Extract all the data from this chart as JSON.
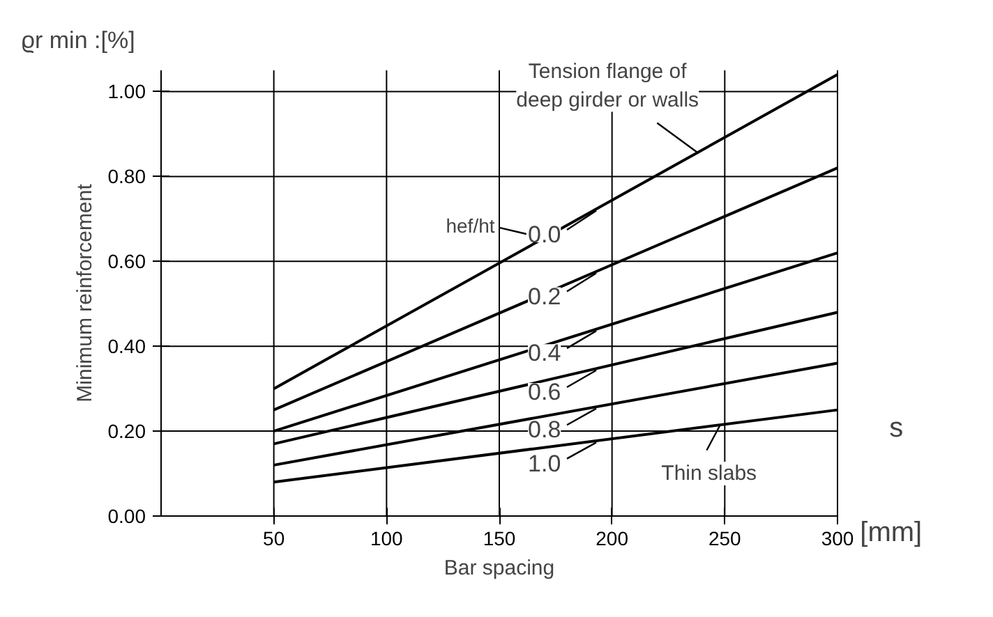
{
  "chart_data": {
    "type": "line",
    "xlabel": "Bar spacing",
    "ylabel": "Minimum reinforcement",
    "legend_title": "hef/ht",
    "x": [
      50,
      300
    ],
    "series": [
      {
        "name": "0.0",
        "color": "#000000",
        "values": [
          0.3,
          1.04
        ]
      },
      {
        "name": "0.2",
        "color": "#000000",
        "values": [
          0.25,
          0.82
        ]
      },
      {
        "name": "0.4",
        "color": "#000000",
        "values": [
          0.2,
          0.62
        ]
      },
      {
        "name": "0.6",
        "color": "#000000",
        "values": [
          0.17,
          0.48
        ]
      },
      {
        "name": "0.8",
        "color": "#000000",
        "values": [
          0.12,
          0.36
        ]
      },
      {
        "name": "1.0",
        "color": "#000000",
        "values": [
          0.08,
          0.25
        ]
      }
    ],
    "xlim": [
      0,
      300
    ],
    "ylim": [
      0,
      1.05
    ],
    "xticks": [
      50,
      100,
      150,
      200,
      250,
      300
    ],
    "yticks": [
      {
        "value": 0,
        "label": "0.00"
      },
      {
        "value": 0.2,
        "label": "0.20"
      },
      {
        "value": 0.4,
        "label": "0.40"
      },
      {
        "value": 0.6,
        "label": "0.60"
      },
      {
        "value": 0.8,
        "label": "0.80"
      },
      {
        "value": 1.0,
        "label": "1.00"
      }
    ],
    "grid": true,
    "legend": "center",
    "marker": "none",
    "line_style": "solid",
    "annotations": [
      {
        "text": "Tension flange of\ndeep girder or walls",
        "x": 238,
        "y": 0.856
      },
      {
        "text": "Thin slabs",
        "x": 248,
        "y": 0.215
      },
      "ϱr min :[%]",
      "s",
      "[mm]"
    ]
  }
}
